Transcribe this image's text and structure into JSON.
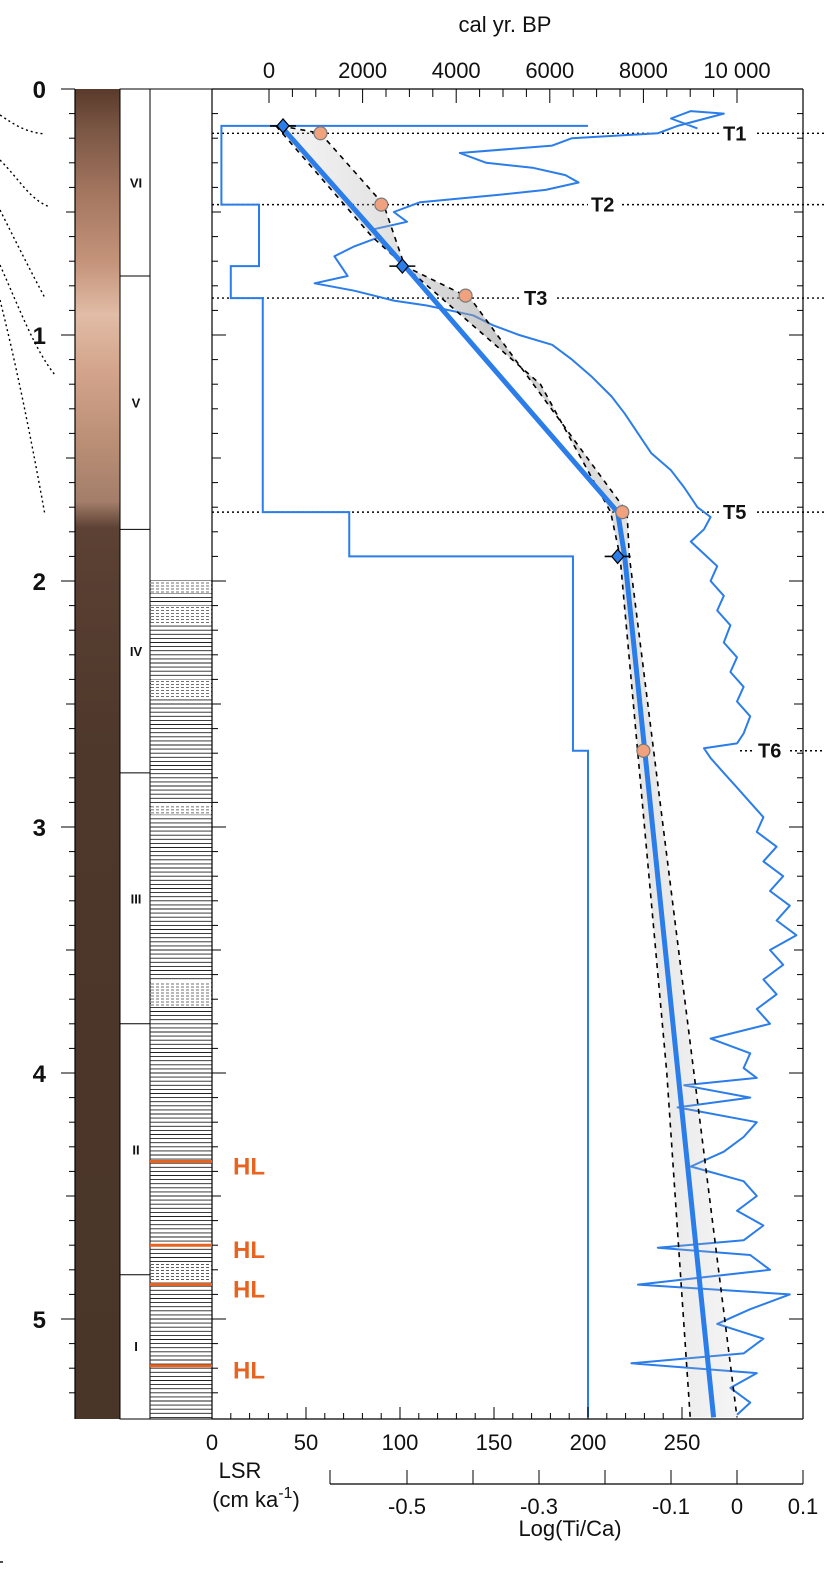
{
  "chart_data": {
    "type": "line",
    "top_axis": {
      "title": "cal yr. BP",
      "range": [
        0,
        10000
      ],
      "ticks": [
        0,
        2000,
        4000,
        6000,
        8000,
        10000
      ],
      "tick_labels": [
        "0",
        "2000",
        "4000",
        "6000",
        "8000",
        "10 000"
      ]
    },
    "depth_axis": {
      "range": [
        0,
        5.4
      ],
      "ticks": [
        0,
        1,
        2,
        3,
        4,
        5
      ],
      "tick_labels": [
        "0",
        "1",
        "2",
        "3",
        "4",
        "5"
      ],
      "inverted": true
    },
    "lsr_axis": {
      "title_line1": "LSR",
      "title_line2": "(cm ka",
      "title_sup": "-1",
      "title_close": ")",
      "range": [
        0,
        260
      ],
      "ticks": [
        0,
        50,
        100,
        150,
        200,
        250
      ],
      "tick_labels": [
        "0",
        "50",
        "100",
        "150",
        "200",
        "250"
      ]
    },
    "ti_axis": {
      "title": "Log(Ti/Ca)",
      "range": [
        -0.6,
        0.1
      ],
      "ticks": [
        -0.5,
        -0.3,
        -0.1,
        0,
        0.1
      ],
      "tick_labels": [
        "-0.5",
        "-0.3",
        "-0.1",
        "0",
        "0.1"
      ]
    },
    "units": [
      {
        "label": "VI",
        "top": 0.0,
        "bottom": 0.76
      },
      {
        "label": "V",
        "top": 0.76,
        "bottom": 1.79
      },
      {
        "label": "IV",
        "top": 1.79,
        "bottom": 2.78
      },
      {
        "label": "III",
        "top": 2.78,
        "bottom": 3.8
      },
      {
        "label": "II",
        "top": 3.8,
        "bottom": 4.82
      },
      {
        "label": "I",
        "top": 4.82,
        "bottom": 5.4
      }
    ],
    "laminated_from": 2.0,
    "dashed_bands": [
      [
        2.0,
        2.05
      ],
      [
        2.1,
        2.18
      ],
      [
        2.4,
        2.48
      ],
      [
        2.91,
        2.95
      ],
      [
        3.63,
        3.73
      ],
      [
        4.77,
        4.85
      ]
    ],
    "hl_layers": [
      {
        "label": "HL",
        "depth": 4.36
      },
      {
        "label": "HL",
        "depth": 4.7
      },
      {
        "label": "HL",
        "depth": 4.86
      },
      {
        "label": "HL",
        "depth": 5.19
      }
    ],
    "transitions": [
      {
        "label": "T1",
        "depth": 0.18
      },
      {
        "label": "T2",
        "depth": 0.47
      },
      {
        "label": "T3",
        "depth": 0.85
      },
      {
        "label": "T5",
        "depth": 1.72
      },
      {
        "label": "T6",
        "depth": 2.69
      }
    ],
    "age_model": {
      "median": [
        [
          250,
          0.15
        ],
        [
          2900,
          0.72
        ],
        [
          7450,
          1.72
        ],
        [
          7600,
          1.9
        ],
        [
          9500,
          5.4
        ]
      ],
      "upper": [
        [
          150,
          0.15
        ],
        [
          2200,
          0.6
        ],
        [
          2900,
          0.72
        ],
        [
          5800,
          1.2
        ],
        [
          7300,
          1.72
        ],
        [
          7500,
          1.9
        ],
        [
          8500,
          4.0
        ],
        [
          9000,
          5.4
        ]
      ],
      "lower": [
        [
          250,
          0.15
        ],
        [
          1100,
          0.18
        ],
        [
          2450,
          0.47
        ],
        [
          2900,
          0.72
        ],
        [
          4300,
          0.85
        ],
        [
          7650,
          1.72
        ],
        [
          7700,
          1.9
        ],
        [
          10000,
          5.4
        ]
      ]
    },
    "dates": [
      {
        "age": 1100,
        "depth": 0.18
      },
      {
        "age": 2400,
        "depth": 0.47
      },
      {
        "age": 4200,
        "depth": 0.84
      },
      {
        "age": 7550,
        "depth": 1.72
      },
      {
        "age": 8000,
        "depth": 2.69
      }
    ],
    "anchors": [
      {
        "age": 300,
        "depth": 0.15
      },
      {
        "age": 2850,
        "depth": 0.72
      },
      {
        "age": 7450,
        "depth": 1.9
      }
    ],
    "lsr_steps": [
      {
        "top": 0.15,
        "bottom": 0.47,
        "value": 5
      },
      {
        "top": 0.47,
        "bottom": 0.72,
        "value": 25
      },
      {
        "top": 0.72,
        "bottom": 0.85,
        "value": 10
      },
      {
        "top": 0.85,
        "bottom": 1.72,
        "value": 27
      },
      {
        "top": 1.72,
        "bottom": 1.9,
        "value": 73
      },
      {
        "top": 1.9,
        "bottom": 2.69,
        "value": 192
      },
      {
        "top": 2.69,
        "bottom": 5.4,
        "value": 200
      }
    ],
    "lsr_top_value": 200,
    "ti_ca_profile": [
      [
        -0.06,
        0.16
      ],
      [
        -0.1,
        0.12
      ],
      [
        -0.07,
        0.09
      ],
      [
        -0.02,
        0.1
      ],
      [
        -0.09,
        0.15
      ],
      [
        -0.12,
        0.18
      ],
      [
        -0.25,
        0.2
      ],
      [
        -0.28,
        0.23
      ],
      [
        -0.42,
        0.26
      ],
      [
        -0.38,
        0.3
      ],
      [
        -0.31,
        0.32
      ],
      [
        -0.26,
        0.35
      ],
      [
        -0.24,
        0.38
      ],
      [
        -0.29,
        0.41
      ],
      [
        -0.36,
        0.43
      ],
      [
        -0.48,
        0.46
      ],
      [
        -0.52,
        0.5
      ],
      [
        -0.5,
        0.54
      ],
      [
        -0.55,
        0.57
      ],
      [
        -0.54,
        0.6
      ],
      [
        -0.58,
        0.64
      ],
      [
        -0.61,
        0.68
      ],
      [
        -0.6,
        0.72
      ],
      [
        -0.59,
        0.76
      ],
      [
        -0.64,
        0.79
      ],
      [
        -0.58,
        0.82
      ],
      [
        -0.52,
        0.86
      ],
      [
        -0.47,
        0.88
      ],
      [
        -0.4,
        0.92
      ],
      [
        -0.37,
        0.96
      ],
      [
        -0.33,
        1.0
      ],
      [
        -0.28,
        1.04
      ],
      [
        -0.25,
        1.1
      ],
      [
        -0.22,
        1.17
      ],
      [
        -0.19,
        1.25
      ],
      [
        -0.17,
        1.32
      ],
      [
        -0.15,
        1.4
      ],
      [
        -0.13,
        1.48
      ],
      [
        -0.1,
        1.55
      ],
      [
        -0.08,
        1.62
      ],
      [
        -0.06,
        1.7
      ],
      [
        -0.04,
        1.74
      ],
      [
        -0.05,
        1.79
      ],
      [
        -0.07,
        1.84
      ],
      [
        -0.05,
        1.89
      ],
      [
        -0.03,
        1.94
      ],
      [
        -0.04,
        2.0
      ],
      [
        -0.02,
        2.06
      ],
      [
        -0.03,
        2.12
      ],
      [
        -0.01,
        2.18
      ],
      [
        -0.02,
        2.25
      ],
      [
        0.0,
        2.31
      ],
      [
        -0.01,
        2.37
      ],
      [
        0.01,
        2.43
      ],
      [
        0.0,
        2.49
      ],
      [
        0.02,
        2.55
      ],
      [
        0.01,
        2.62
      ],
      [
        0.0,
        2.66
      ],
      [
        -0.05,
        2.68
      ],
      [
        -0.04,
        2.72
      ],
      [
        -0.02,
        2.78
      ],
      [
        0.0,
        2.84
      ],
      [
        0.02,
        2.9
      ],
      [
        0.04,
        2.96
      ],
      [
        0.03,
        3.02
      ],
      [
        0.06,
        3.08
      ],
      [
        0.04,
        3.14
      ],
      [
        0.07,
        3.2
      ],
      [
        0.05,
        3.26
      ],
      [
        0.08,
        3.32
      ],
      [
        0.06,
        3.38
      ],
      [
        0.09,
        3.44
      ],
      [
        0.05,
        3.5
      ],
      [
        0.07,
        3.56
      ],
      [
        0.04,
        3.62
      ],
      [
        0.06,
        3.68
      ],
      [
        0.03,
        3.74
      ],
      [
        0.05,
        3.8
      ],
      [
        -0.04,
        3.86
      ],
      [
        0.02,
        3.92
      ],
      [
        0.01,
        3.98
      ],
      [
        0.03,
        4.02
      ],
      [
        -0.08,
        4.05
      ],
      [
        0.02,
        4.1
      ],
      [
        -0.09,
        4.14
      ],
      [
        0.03,
        4.2
      ],
      [
        0.01,
        4.26
      ],
      [
        -0.02,
        4.32
      ],
      [
        -0.07,
        4.38
      ],
      [
        0.01,
        4.44
      ],
      [
        0.03,
        4.5
      ],
      [
        0.0,
        4.56
      ],
      [
        0.04,
        4.62
      ],
      [
        0.01,
        4.68
      ],
      [
        -0.12,
        4.71
      ],
      [
        0.02,
        4.74
      ],
      [
        0.05,
        4.8
      ],
      [
        -0.15,
        4.86
      ],
      [
        0.08,
        4.9
      ],
      [
        0.02,
        4.96
      ],
      [
        -0.03,
        5.02
      ],
      [
        0.04,
        5.08
      ],
      [
        0.01,
        5.14
      ],
      [
        -0.16,
        5.18
      ],
      [
        0.03,
        5.22
      ],
      [
        -0.01,
        5.28
      ],
      [
        0.02,
        5.34
      ],
      [
        0.0,
        5.39
      ]
    ],
    "grid": false
  }
}
